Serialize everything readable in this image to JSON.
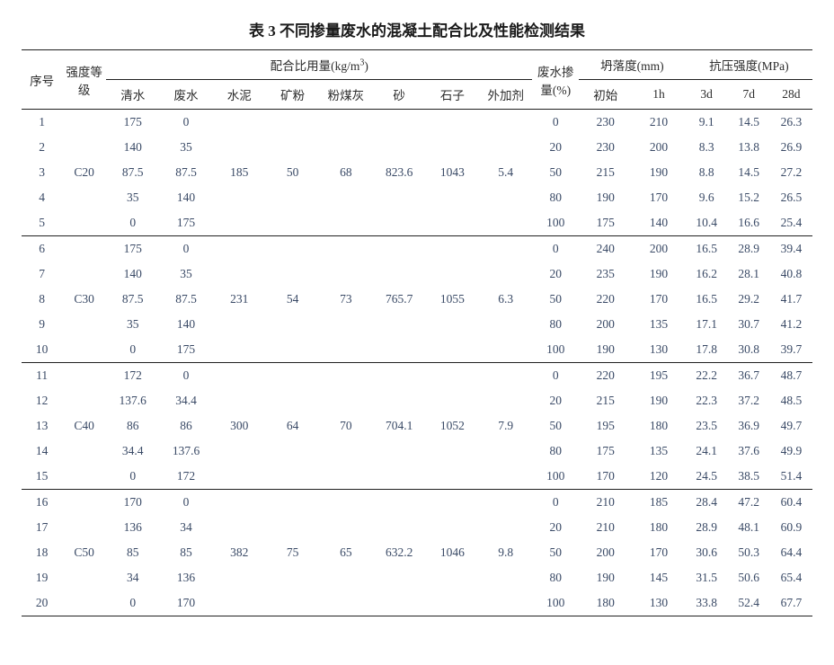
{
  "title": "表 3  不同掺量废水的混凝土配合比及性能检测结果",
  "header": {
    "seq": "序号",
    "grade": "强度等级",
    "mix_group": "配合比用量(kg/m",
    "mix_group_sup": "3",
    "mix_group_close": ")",
    "mix": [
      "清水",
      "废水",
      "水泥",
      "矿粉",
      "粉煤灰",
      "砂",
      "石子",
      "外加剂"
    ],
    "ww": "废水掺量(%)",
    "slump_group": "坍落度(mm)",
    "slump": [
      "初始",
      "1h"
    ],
    "strength_group": "抗压强度(MPa)",
    "strength": [
      "3d",
      "7d",
      "28d"
    ]
  },
  "col_widths": [
    "4.8%",
    "5.2%",
    "6.3%",
    "6.3%",
    "6.3%",
    "6.3%",
    "6.3%",
    "6.3%",
    "6.3%",
    "6.3%",
    "5.5%",
    "6.3%",
    "6.3%",
    "5.0%",
    "5.0%",
    "5.0%"
  ],
  "groups": [
    {
      "grade": "C20",
      "shared": {
        "cement": "185",
        "slag": "50",
        "flyash": "68",
        "sand": "823.6",
        "stone": "1043",
        "admix": "5.4"
      },
      "rows": [
        {
          "n": "1",
          "cw": "175",
          "ww": "0",
          "pct": "0",
          "s0": "230",
          "s1": "210",
          "d3": "9.1",
          "d7": "14.5",
          "d28": "26.3"
        },
        {
          "n": "2",
          "cw": "140",
          "ww": "35",
          "pct": "20",
          "s0": "230",
          "s1": "200",
          "d3": "8.3",
          "d7": "13.8",
          "d28": "26.9"
        },
        {
          "n": "3",
          "cw": "87.5",
          "ww": "87.5",
          "pct": "50",
          "s0": "215",
          "s1": "190",
          "d3": "8.8",
          "d7": "14.5",
          "d28": "27.2"
        },
        {
          "n": "4",
          "cw": "35",
          "ww": "140",
          "pct": "80",
          "s0": "190",
          "s1": "170",
          "d3": "9.6",
          "d7": "15.2",
          "d28": "26.5"
        },
        {
          "n": "5",
          "cw": "0",
          "ww": "175",
          "pct": "100",
          "s0": "175",
          "s1": "140",
          "d3": "10.4",
          "d7": "16.6",
          "d28": "25.4"
        }
      ]
    },
    {
      "grade": "C30",
      "shared": {
        "cement": "231",
        "slag": "54",
        "flyash": "73",
        "sand": "765.7",
        "stone": "1055",
        "admix": "6.3"
      },
      "rows": [
        {
          "n": "6",
          "cw": "175",
          "ww": "0",
          "pct": "0",
          "s0": "240",
          "s1": "200",
          "d3": "16.5",
          "d7": "28.9",
          "d28": "39.4"
        },
        {
          "n": "7",
          "cw": "140",
          "ww": "35",
          "pct": "20",
          "s0": "235",
          "s1": "190",
          "d3": "16.2",
          "d7": "28.1",
          "d28": "40.8"
        },
        {
          "n": "8",
          "cw": "87.5",
          "ww": "87.5",
          "pct": "50",
          "s0": "220",
          "s1": "170",
          "d3": "16.5",
          "d7": "29.2",
          "d28": "41.7"
        },
        {
          "n": "9",
          "cw": "35",
          "ww": "140",
          "pct": "80",
          "s0": "200",
          "s1": "135",
          "d3": "17.1",
          "d7": "30.7",
          "d28": "41.2"
        },
        {
          "n": "10",
          "cw": "0",
          "ww": "175",
          "pct": "100",
          "s0": "190",
          "s1": "130",
          "d3": "17.8",
          "d7": "30.8",
          "d28": "39.7"
        }
      ]
    },
    {
      "grade": "C40",
      "shared": {
        "cement": "300",
        "slag": "64",
        "flyash": "70",
        "sand": "704.1",
        "stone": "1052",
        "admix": "7.9"
      },
      "rows": [
        {
          "n": "11",
          "cw": "172",
          "ww": "0",
          "pct": "0",
          "s0": "220",
          "s1": "195",
          "d3": "22.2",
          "d7": "36.7",
          "d28": "48.7"
        },
        {
          "n": "12",
          "cw": "137.6",
          "ww": "34.4",
          "pct": "20",
          "s0": "215",
          "s1": "190",
          "d3": "22.3",
          "d7": "37.2",
          "d28": "48.5"
        },
        {
          "n": "13",
          "cw": "86",
          "ww": "86",
          "pct": "50",
          "s0": "195",
          "s1": "180",
          "d3": "23.5",
          "d7": "36.9",
          "d28": "49.7"
        },
        {
          "n": "14",
          "cw": "34.4",
          "ww": "137.6",
          "pct": "80",
          "s0": "175",
          "s1": "135",
          "d3": "24.1",
          "d7": "37.6",
          "d28": "49.9"
        },
        {
          "n": "15",
          "cw": "0",
          "ww": "172",
          "pct": "100",
          "s0": "170",
          "s1": "120",
          "d3": "24.5",
          "d7": "38.5",
          "d28": "51.4"
        }
      ]
    },
    {
      "grade": "C50",
      "shared": {
        "cement": "382",
        "slag": "75",
        "flyash": "65",
        "sand": "632.2",
        "stone": "1046",
        "admix": "9.8"
      },
      "rows": [
        {
          "n": "16",
          "cw": "170",
          "ww": "0",
          "pct": "0",
          "s0": "210",
          "s1": "185",
          "d3": "28.4",
          "d7": "47.2",
          "d28": "60.4"
        },
        {
          "n": "17",
          "cw": "136",
          "ww": "34",
          "pct": "20",
          "s0": "210",
          "s1": "180",
          "d3": "28.9",
          "d7": "48.1",
          "d28": "60.9"
        },
        {
          "n": "18",
          "cw": "85",
          "ww": "85",
          "pct": "50",
          "s0": "200",
          "s1": "170",
          "d3": "30.6",
          "d7": "50.3",
          "d28": "64.4"
        },
        {
          "n": "19",
          "cw": "34",
          "ww": "136",
          "pct": "80",
          "s0": "190",
          "s1": "145",
          "d3": "31.5",
          "d7": "50.6",
          "d28": "65.4"
        },
        {
          "n": "20",
          "cw": "0",
          "ww": "170",
          "pct": "100",
          "s0": "180",
          "s1": "130",
          "d3": "33.8",
          "d7": "52.4",
          "d28": "67.7"
        }
      ]
    }
  ]
}
